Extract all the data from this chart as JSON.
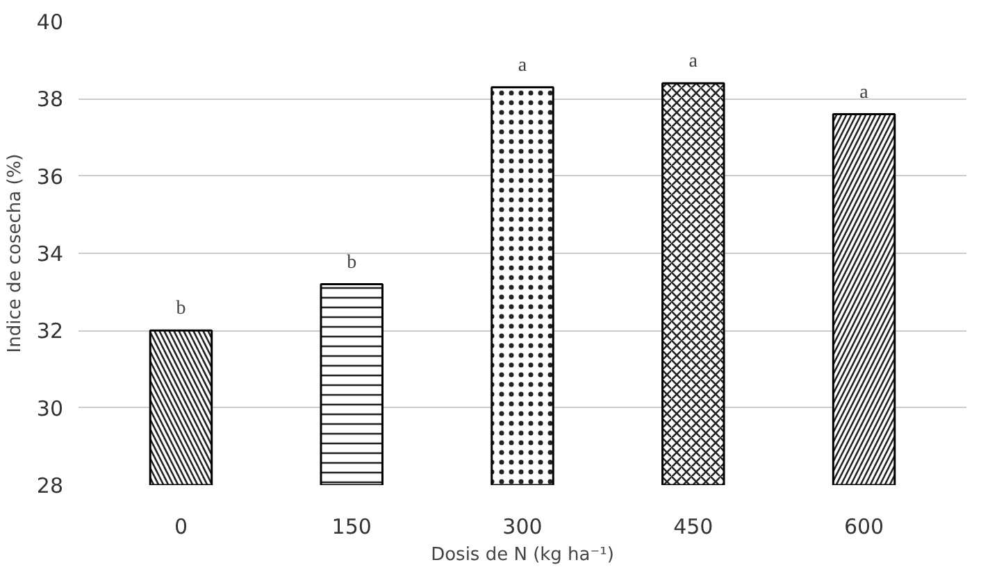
{
  "chart_data": {
    "type": "bar",
    "xlabel": "Dosis de N (kg ha⁻¹)",
    "ylabel": "Indice de cosecha (%)",
    "categories": [
      "0",
      "150",
      "300",
      "450",
      "600"
    ],
    "values": [
      32.0,
      33.2,
      38.3,
      38.4,
      37.6
    ],
    "color": "#ffffff",
    "ylim": [
      28,
      40
    ],
    "yticks": [
      28,
      30,
      32,
      34,
      36,
      38,
      40
    ],
    "grid": "y",
    "annotations": [
      {
        "text": "b",
        "x": "0",
        "y": 32.0
      },
      {
        "text": "b",
        "x": "150",
        "y": 33.2
      },
      {
        "text": "a",
        "x": "300",
        "y": 38.3
      },
      {
        "text": "a",
        "x": "450",
        "y": 38.4
      },
      {
        "text": "a",
        "x": "600",
        "y": 37.6
      }
    ]
  }
}
